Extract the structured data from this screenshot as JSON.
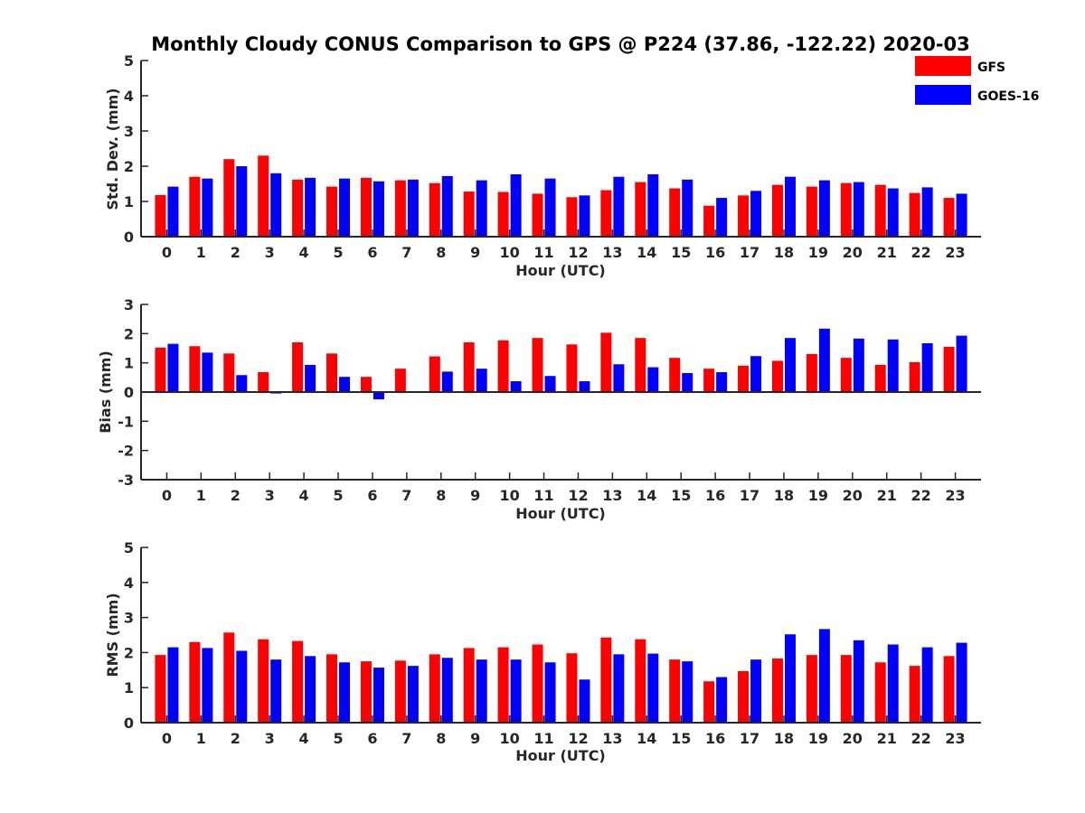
{
  "chart_data": {
    "title": "Monthly Cloudy CONUS Comparison to GPS @ P224 (37.86, -122.22) 2020-03",
    "legend": {
      "location": "top-right",
      "entries": [
        "GFS",
        "GOES-16"
      ]
    },
    "colors": {
      "GFS": "#ff0000",
      "GOES-16": "#0000ff"
    },
    "categories": [
      "0",
      "1",
      "2",
      "3",
      "4",
      "5",
      "6",
      "7",
      "8",
      "9",
      "10",
      "11",
      "12",
      "13",
      "14",
      "15",
      "16",
      "17",
      "18",
      "19",
      "20",
      "21",
      "22",
      "23"
    ],
    "panels": [
      {
        "type": "bar",
        "xlabel": "Hour (UTC)",
        "ylabel": "Std. Dev. (mm)",
        "ylim": [
          0,
          5
        ],
        "yticks": [
          "0",
          "1",
          "2",
          "3",
          "4",
          "5"
        ],
        "series": [
          {
            "name": "GFS",
            "values": [
              1.18,
              1.7,
              2.2,
              2.3,
              1.62,
              1.42,
              1.67,
              1.6,
              1.52,
              1.28,
              1.27,
              1.22,
              1.12,
              1.32,
              1.55,
              1.37,
              0.88,
              1.17,
              1.47,
              1.42,
              1.52,
              1.47,
              1.24,
              1.1
            ]
          },
          {
            "name": "GOES-16",
            "values": [
              1.42,
              1.65,
              2.0,
              1.8,
              1.67,
              1.65,
              1.57,
              1.62,
              1.72,
              1.6,
              1.77,
              1.65,
              1.17,
              1.7,
              1.77,
              1.62,
              1.1,
              1.3,
              1.7,
              1.6,
              1.55,
              1.37,
              1.4,
              1.22
            ]
          }
        ]
      },
      {
        "type": "bar",
        "xlabel": "Hour (UTC)",
        "ylabel": "Bias (mm)",
        "ylim": [
          -3,
          3
        ],
        "yticks": [
          "-3",
          "-2",
          "-1",
          "0",
          "1",
          "2",
          "3"
        ],
        "series": [
          {
            "name": "GFS",
            "values": [
              1.52,
              1.57,
              1.32,
              0.68,
              1.7,
              1.32,
              0.52,
              0.8,
              1.22,
              1.7,
              1.77,
              1.85,
              1.63,
              2.03,
              1.85,
              1.17,
              0.8,
              0.9,
              1.07,
              1.3,
              1.17,
              0.93,
              1.02,
              1.55
            ]
          },
          {
            "name": "GOES-16",
            "values": [
              1.65,
              1.35,
              0.58,
              -0.05,
              0.93,
              0.52,
              -0.25,
              0.0,
              0.7,
              0.8,
              0.37,
              0.55,
              0.37,
              0.95,
              0.85,
              0.65,
              0.68,
              1.23,
              1.85,
              2.17,
              1.83,
              1.8,
              1.67,
              1.93
            ]
          }
        ]
      },
      {
        "type": "bar",
        "xlabel": "Hour (UTC)",
        "ylabel": "RMS (mm)",
        "ylim": [
          0,
          5
        ],
        "yticks": [
          "0",
          "1",
          "2",
          "3",
          "4",
          "5"
        ],
        "series": [
          {
            "name": "GFS",
            "values": [
              1.93,
              2.3,
              2.57,
              2.38,
              2.33,
              1.95,
              1.75,
              1.77,
              1.95,
              2.13,
              2.15,
              2.23,
              1.98,
              2.43,
              2.38,
              1.8,
              1.18,
              1.47,
              1.83,
              1.93,
              1.93,
              1.72,
              1.62,
              1.9
            ]
          },
          {
            "name": "GOES-16",
            "values": [
              2.15,
              2.13,
              2.05,
              1.8,
              1.9,
              1.72,
              1.57,
              1.62,
              1.85,
              1.8,
              1.8,
              1.72,
              1.23,
              1.95,
              1.97,
              1.75,
              1.3,
              1.8,
              2.52,
              2.67,
              2.35,
              2.23,
              2.15,
              2.28
            ]
          }
        ]
      }
    ]
  }
}
